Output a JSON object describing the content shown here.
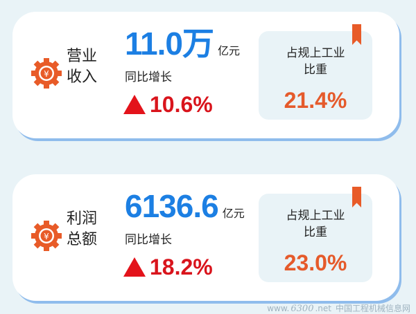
{
  "cards": [
    {
      "label_line1": "营业",
      "label_line2": "收入",
      "value": "11.0万",
      "unit": "亿元",
      "yoy_label": "同比增长",
      "yoy_value": "10.6%",
      "share_title_line1": "占规上工业",
      "share_title_line2": "比重",
      "share_value": "21.4%"
    },
    {
      "label_line1": "利润",
      "label_line2": "总额",
      "value": "6136.6",
      "unit": "亿元",
      "yoy_label": "同比增长",
      "yoy_value": "18.2%",
      "share_title_line1": "占规上工业",
      "share_title_line2": "比重",
      "share_value": "23.0%"
    }
  ],
  "watermark": {
    "site": "www.",
    "logo": "6300",
    ".net": ".net",
    "name": "中国工程机械信息网"
  },
  "colors": {
    "value": "#1c7fe3",
    "growth": "#d9141c",
    "share": "#e55a2b",
    "icon": "#e85b28"
  },
  "icons": {
    "gear": "gear-yuan-icon",
    "up": "triangle-up-icon",
    "bookmark": "bookmark-icon"
  }
}
